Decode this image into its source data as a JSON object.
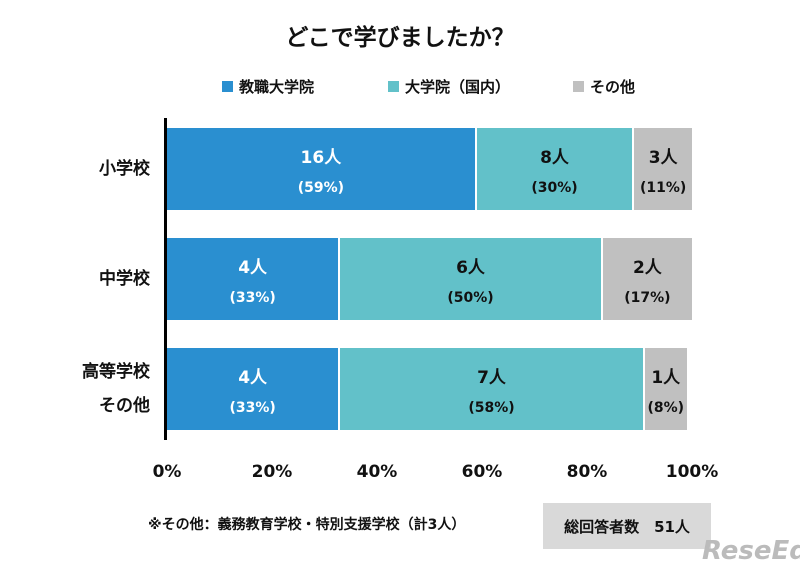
{
  "chart_data": {
    "type": "bar",
    "orientation": "horizontal",
    "stacked": true,
    "title": "どこで学びましたか？",
    "categories": [
      [
        "小学校"
      ],
      [
        "中学校"
      ],
      [
        "高等学校",
        "その他"
      ]
    ],
    "series": [
      {
        "name": "教職大学院",
        "color": "#2a8fd0",
        "counts": [
          "16人",
          "4人",
          "4人"
        ],
        "values": [
          59,
          33,
          33
        ]
      },
      {
        "name": "大学院（国内）",
        "color": "#62c1c9",
        "counts": [
          "8人",
          "6人",
          "7人"
        ],
        "values": [
          30,
          50,
          58
        ]
      },
      {
        "name": "その他",
        "color": "#c0c0c0",
        "counts": [
          "3人",
          "2人",
          "1人"
        ],
        "values": [
          11,
          17,
          8
        ]
      }
    ],
    "xlim": [
      0,
      100
    ],
    "xticks": [
      "0%",
      "20%",
      "40%",
      "60%",
      "80%",
      "100%"
    ],
    "legend": "top"
  },
  "footnote": "※その他：義務教育学校・特別支援学校（計3人）",
  "total": "総回答者数　51人",
  "logo": "ReseEd"
}
